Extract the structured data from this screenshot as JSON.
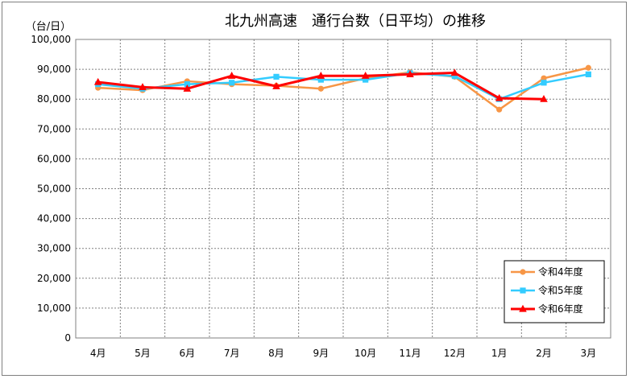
{
  "chart_data": {
    "type": "line",
    "title": "北九州高速　通行台数（日平均）の推移",
    "ylabel": "（台/日）",
    "xlabel": "",
    "categories": [
      "4月",
      "5月",
      "6月",
      "7月",
      "8月",
      "9月",
      "10月",
      "11月",
      "12月",
      "1月",
      "2月",
      "3月"
    ],
    "yticks": [
      "0",
      "10,000",
      "20,000",
      "30,000",
      "40,000",
      "50,000",
      "60,000",
      "70,000",
      "80,000",
      "90,000",
      "100,000"
    ],
    "ylim": [
      0,
      100000
    ],
    "grid": true,
    "legend_position": "bottom-right",
    "series": [
      {
        "name": "令和4年度",
        "color": "#F79646",
        "marker": "circle",
        "values": [
          83800,
          83000,
          86000,
          85000,
          84500,
          83500,
          87000,
          89000,
          87500,
          76500,
          87000,
          90500
        ]
      },
      {
        "name": "令和5年度",
        "color": "#33CCFF",
        "marker": "square",
        "values": [
          85000,
          83500,
          85000,
          85500,
          87500,
          86500,
          86500,
          88700,
          87700,
          80000,
          85500,
          88300
        ]
      },
      {
        "name": "令和6年度",
        "color": "#FF0000",
        "marker": "triangle",
        "values": [
          85700,
          84000,
          83500,
          87800,
          84300,
          87800,
          87800,
          88300,
          88800,
          80300,
          80000,
          null
        ]
      }
    ]
  }
}
